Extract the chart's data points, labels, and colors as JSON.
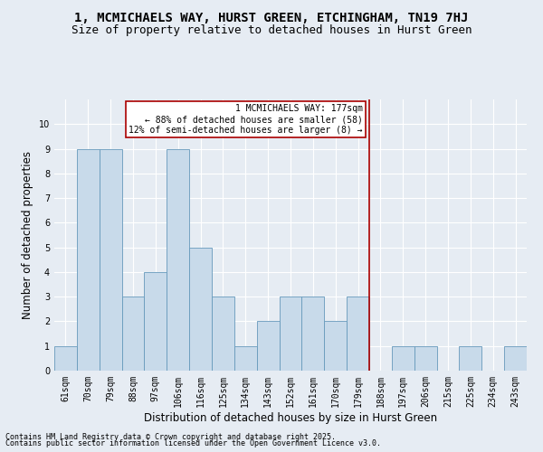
{
  "title": "1, MCMICHAELS WAY, HURST GREEN, ETCHINGHAM, TN19 7HJ",
  "subtitle": "Size of property relative to detached houses in Hurst Green",
  "xlabel": "Distribution of detached houses by size in Hurst Green",
  "ylabel": "Number of detached properties",
  "categories": [
    "61sqm",
    "70sqm",
    "79sqm",
    "88sqm",
    "97sqm",
    "106sqm",
    "116sqm",
    "125sqm",
    "134sqm",
    "143sqm",
    "152sqm",
    "161sqm",
    "170sqm",
    "179sqm",
    "188sqm",
    "197sqm",
    "206sqm",
    "215sqm",
    "225sqm",
    "234sqm",
    "243sqm"
  ],
  "values": [
    1,
    9,
    9,
    3,
    4,
    9,
    5,
    3,
    1,
    2,
    3,
    3,
    2,
    3,
    0,
    1,
    1,
    0,
    1,
    0,
    1
  ],
  "bar_color": "#c8daea",
  "bar_edge_color": "#6699bb",
  "vline_index": 13.5,
  "vline_color": "#aa0000",
  "annotation_text": "1 MCMICHAELS WAY: 177sqm\n← 88% of detached houses are smaller (58)\n12% of semi-detached houses are larger (8) →",
  "annotation_box_edgecolor": "#aa0000",
  "annotation_fontsize": 7,
  "ylim": [
    0,
    11
  ],
  "yticks": [
    0,
    1,
    2,
    3,
    4,
    5,
    6,
    7,
    8,
    9,
    10,
    11
  ],
  "bg_color": "#e6ecf3",
  "grid_color": "#ffffff",
  "footer_line1": "Contains HM Land Registry data © Crown copyright and database right 2025.",
  "footer_line2": "Contains public sector information licensed under the Open Government Licence v3.0.",
  "title_fontsize": 10,
  "subtitle_fontsize": 9,
  "xlabel_fontsize": 8.5,
  "ylabel_fontsize": 8.5,
  "tick_fontsize": 7,
  "footer_fontsize": 6
}
